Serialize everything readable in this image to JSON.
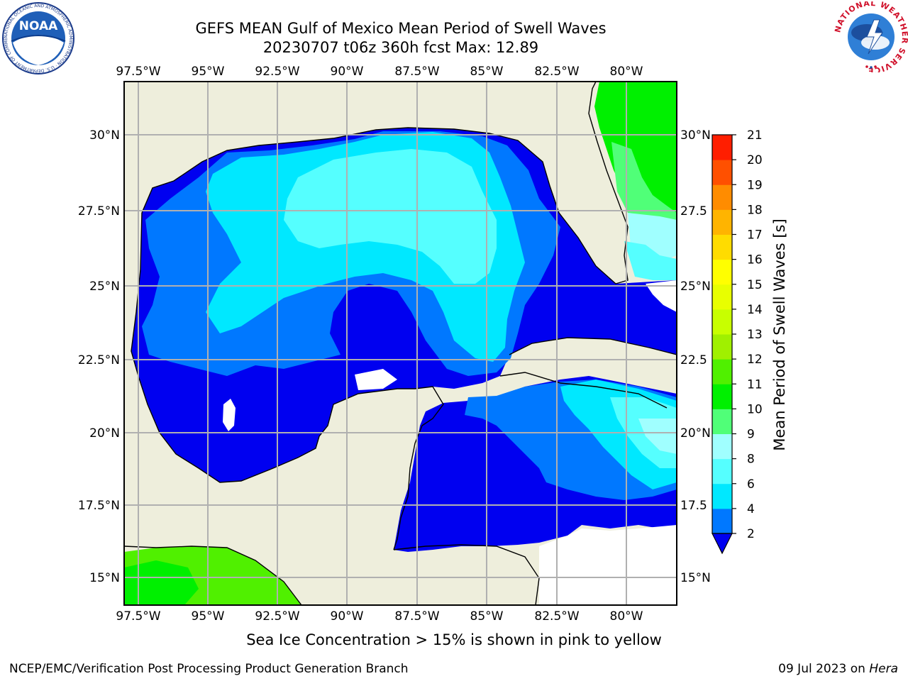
{
  "title": {
    "line1": "GEFS MEAN Gulf of Mexico Mean Period of Swell Waves",
    "line2": "20230707 t06z 360h fcst   Max: 12.89"
  },
  "map": {
    "lon_labels": [
      "97.5°W",
      "95°W",
      "92.5°W",
      "90°W",
      "87.5°W",
      "85°W",
      "82.5°W",
      "80°W"
    ],
    "lat_labels_left": [
      "30°N",
      "27.5°N",
      "25°N",
      "22.5°N",
      "20°N",
      "17.5°N",
      "15°N"
    ],
    "lat_labels_right": [
      "30°N",
      "27.5",
      "25°N",
      "22.5",
      "20°N",
      "17.5",
      "15°N"
    ],
    "colors": {
      "land": "#EEEEDC",
      "deep_blue": "#0000F0",
      "blue": "#0078FF",
      "cyan": "#00E8FF",
      "light_cyan": "#55FFFF",
      "pale_cyan": "#A0FFFF",
      "light_green": "#50FF78",
      "green": "#00F000",
      "yellow_green": "#64F000"
    }
  },
  "colorbar": {
    "label": "Mean Period of Swell Waves [s]",
    "ticks": [
      "2",
      "4",
      "6",
      "8",
      "9",
      "10",
      "11",
      "12",
      "13",
      "14",
      "15",
      "16",
      "17",
      "18",
      "19",
      "20",
      "21"
    ],
    "colors": [
      "#0078FF",
      "#00E8FF",
      "#55FFFF",
      "#A0FFFF",
      "#50FF78",
      "#00F000",
      "#50F000",
      "#A0F000",
      "#C8FF00",
      "#E8FF00",
      "#FFFF00",
      "#FFDC00",
      "#FFB400",
      "#FF8C00",
      "#FF5000",
      "#FF1E00"
    ],
    "under_color": "#0000F0"
  },
  "caption": "Sea Ice Concentration > 15% is shown in pink to yellow",
  "footer": {
    "left": "NCEP/EMC/Verification Post Processing Product Generation Branch",
    "right_prefix": "09 Jul 2023 on ",
    "right_host": "Hera"
  },
  "logos": {
    "noaa_text": "NOAA",
    "noaa_ring_text": "NATIONAL OCEANIC AND ATMOSPHERIC ADMINISTRATION · U.S. DEPARTMENT OF COMMERCE",
    "nws_ring_text": "NATIONAL WEATHER SERVICE"
  }
}
